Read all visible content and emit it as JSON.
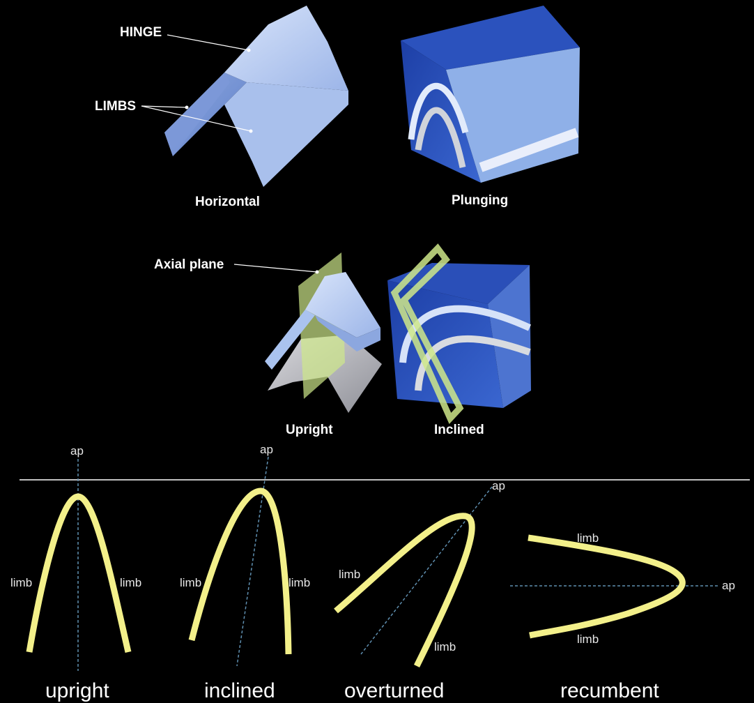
{
  "top_row": {
    "hinge": "HINGE",
    "limbs": "LIMBS",
    "horizontal": "Horizontal",
    "plunging": "Plunging"
  },
  "middle_row": {
    "axial_plane": "Axial plane",
    "upright": "Upright",
    "inclined": "Inclined"
  },
  "bottom_row": {
    "ap": "ap",
    "limb": "limb",
    "fold_types": [
      "upright",
      "inclined",
      "overturned",
      "recumbent"
    ]
  },
  "colors": {
    "background": "#000000",
    "fold_yellow": "#f3f08a",
    "axial_plane_green": "#cfe88a",
    "block_blue": "#2a4fb8",
    "rock_light": "#b9cdf2"
  }
}
